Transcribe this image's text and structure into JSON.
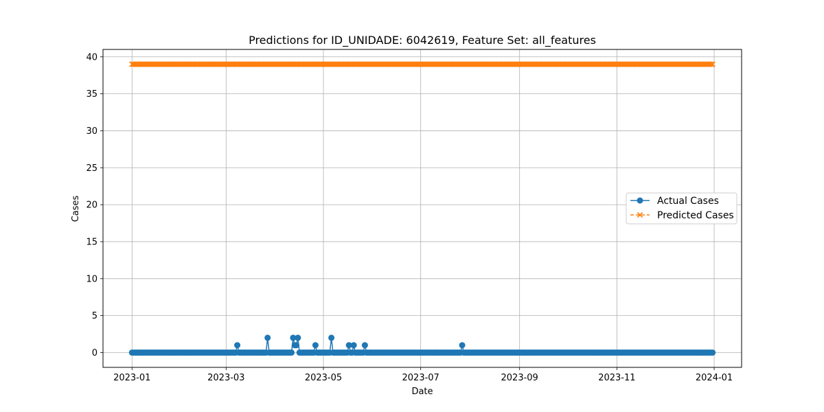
{
  "chart_data": {
    "type": "line",
    "title": "Predictions for ID_UNIDADE: 6042619, Feature Set: all_features",
    "xlabel": "Date",
    "ylabel": "Cases",
    "x_range": [
      "2023-01-01",
      "2023-12-31"
    ],
    "x_ticks": [
      "2023-01",
      "2023-03",
      "2023-05",
      "2023-07",
      "2023-09",
      "2023-11",
      "2024-01"
    ],
    "ylim": [
      -2,
      41
    ],
    "y_ticks": [
      0,
      5,
      10,
      15,
      20,
      25,
      30,
      35,
      40
    ],
    "grid": true,
    "legend_position": "center-right",
    "series": [
      {
        "name": "Actual Cases",
        "color": "#1f77b4",
        "marker": "circle",
        "line_style": "solid",
        "default_value": 0,
        "nonzero_points": [
          {
            "date": "2023-03-08",
            "value": 1
          },
          {
            "date": "2023-03-27",
            "value": 2
          },
          {
            "date": "2023-04-12",
            "value": 2
          },
          {
            "date": "2023-04-13",
            "value": 1
          },
          {
            "date": "2023-04-14",
            "value": 1
          },
          {
            "date": "2023-04-15",
            "value": 2
          },
          {
            "date": "2023-04-26",
            "value": 1
          },
          {
            "date": "2023-05-06",
            "value": 2
          },
          {
            "date": "2023-05-17",
            "value": 1
          },
          {
            "date": "2023-05-20",
            "value": 1
          },
          {
            "date": "2023-05-27",
            "value": 1
          },
          {
            "date": "2023-07-27",
            "value": 1
          }
        ]
      },
      {
        "name": "Predicted Cases",
        "color": "#ff7f0e",
        "marker": "x",
        "line_style": "dashed",
        "constant_value": 39
      }
    ]
  }
}
